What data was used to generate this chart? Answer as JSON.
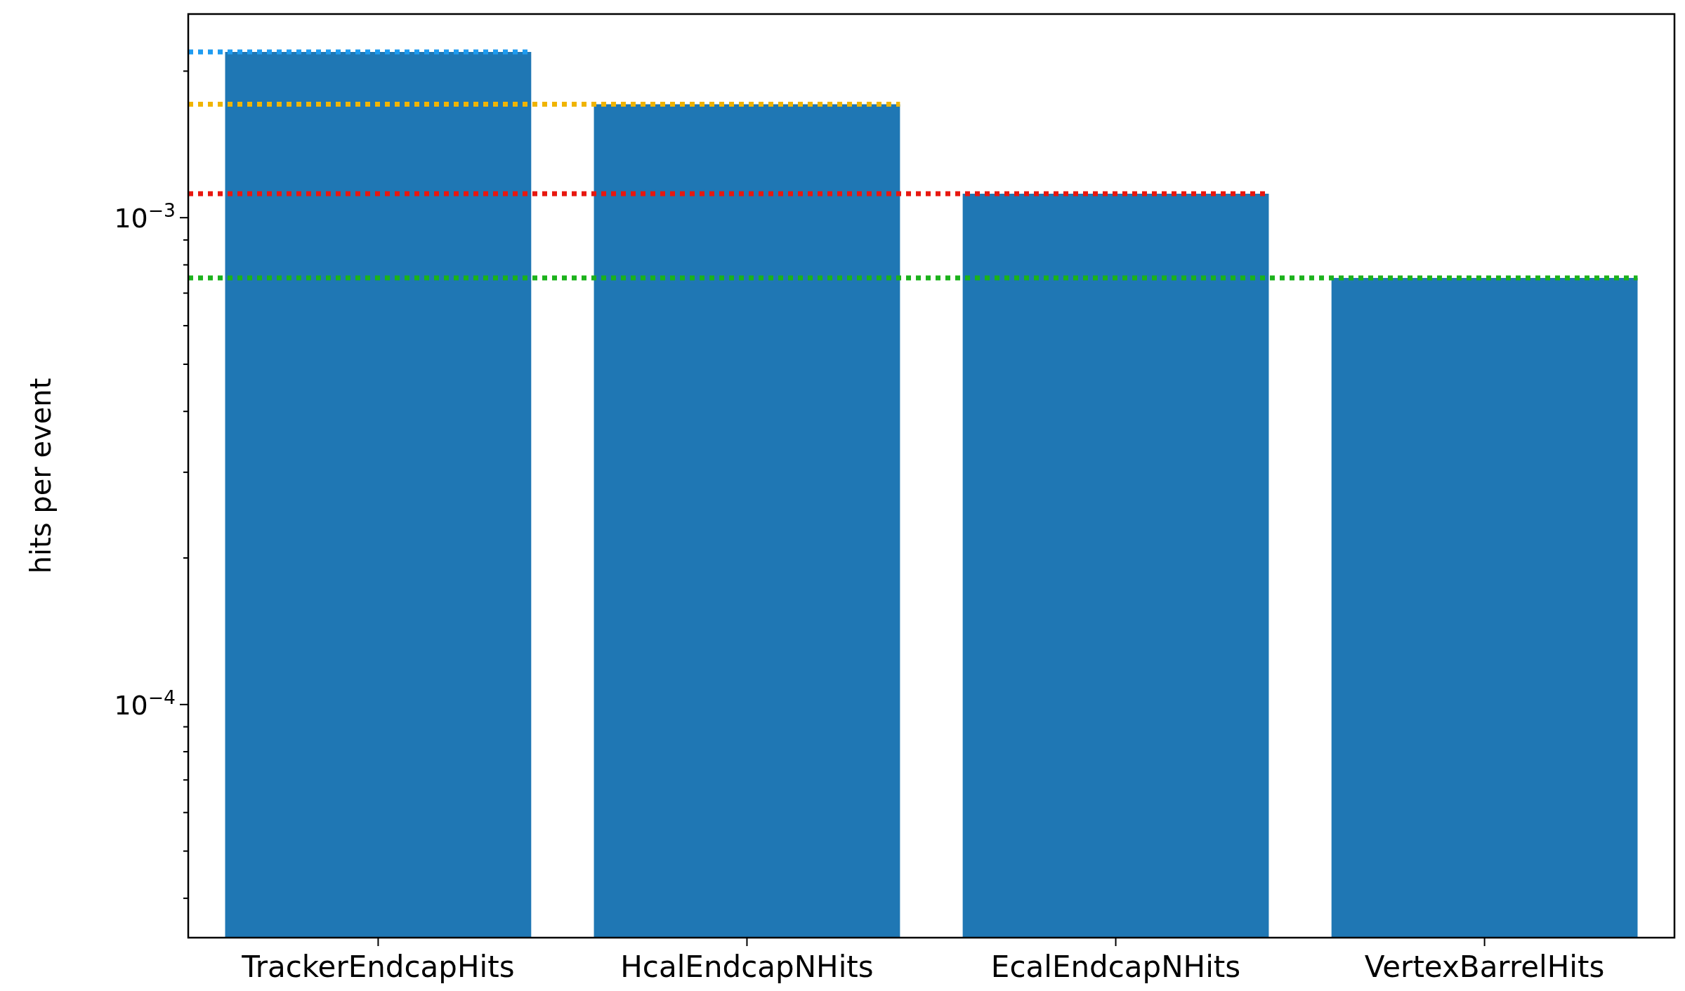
{
  "chart_data": {
    "type": "bar",
    "ylabel": "hits per event",
    "log": true,
    "grid": false,
    "categories": [
      "TrackerEndcapHits",
      "HcalEndcapNHits",
      "EcalEndcapNHits",
      "VertexBarrelHits"
    ],
    "values": [
      0.00219,
      0.00171,
      0.00112,
      0.000752
    ],
    "color": "#1f77b4",
    "ylim": [
      3.32e-05,
      0.00262
    ],
    "yticks": [
      {
        "value": 4e-05,
        "label": null
      },
      {
        "value": 5e-05,
        "label": null
      },
      {
        "value": 6e-05,
        "label": null
      },
      {
        "value": 7e-05,
        "label": null
      },
      {
        "value": 8e-05,
        "label": null
      },
      {
        "value": 9e-05,
        "label": null
      },
      {
        "value": 0.0001,
        "label": "10$^{−4}$"
      },
      {
        "value": 0.0002,
        "label": null
      },
      {
        "value": 0.0003,
        "label": null
      },
      {
        "value": 0.0004,
        "label": null
      },
      {
        "value": 0.0005,
        "label": null
      },
      {
        "value": 0.0006,
        "label": null
      },
      {
        "value": 0.0007,
        "label": null
      },
      {
        "value": 0.0008,
        "label": null
      },
      {
        "value": 0.0009,
        "label": null
      },
      {
        "value": 0.001,
        "label": "10$^{−3}$"
      },
      {
        "value": 0.002,
        "label": null
      }
    ],
    "ref_lines": [
      {
        "axis": "y",
        "value": 0.00219,
        "color": "#1e9bf0",
        "line_style": "dotted"
      },
      {
        "axis": "y",
        "value": 0.00171,
        "color": "#f0b400",
        "line_style": "dotted"
      },
      {
        "axis": "y",
        "value": 0.00112,
        "color": "#e8170f",
        "line_style": "dotted"
      },
      {
        "axis": "y",
        "value": 0.000752,
        "color": "#1bb21b",
        "line_style": "dotted"
      }
    ]
  }
}
